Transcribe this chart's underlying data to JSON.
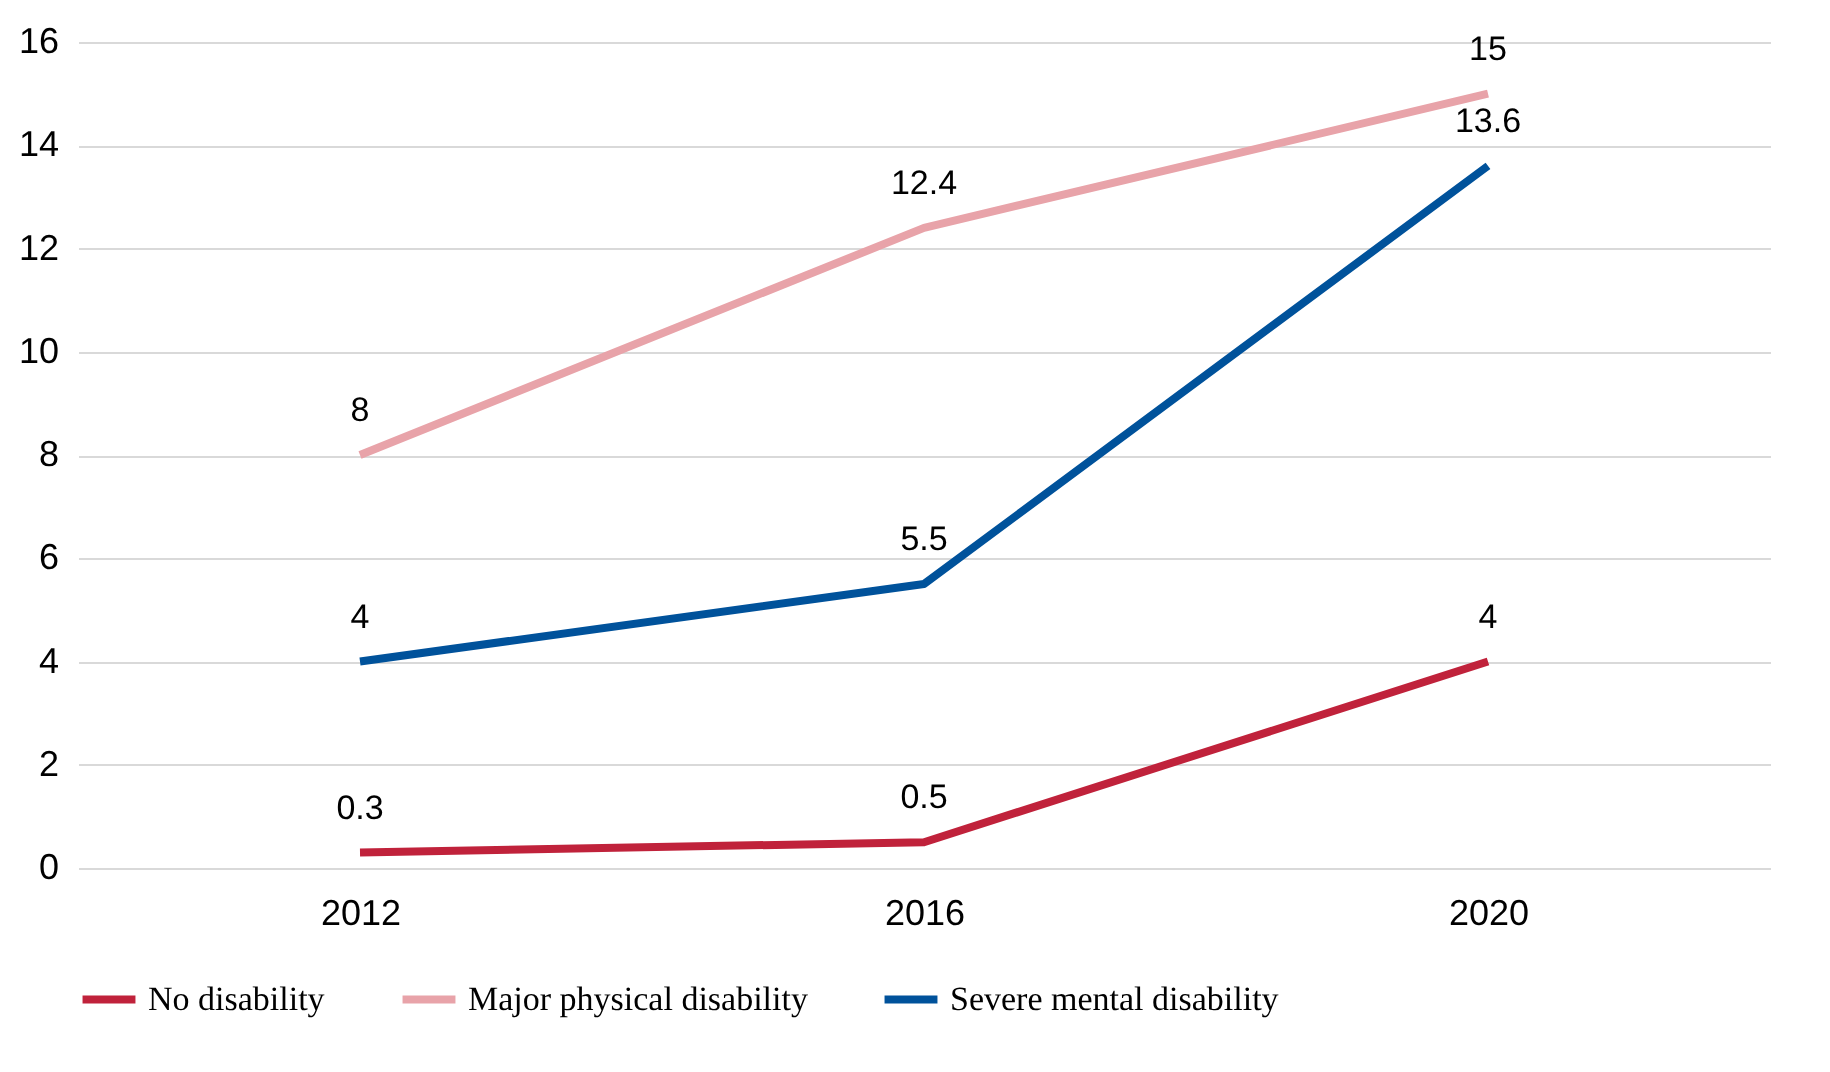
{
  "chart_data": {
    "type": "line",
    "categories": [
      "2012",
      "2016",
      "2020"
    ],
    "series": [
      {
        "name": "No disability",
        "color": "#c0223b",
        "values": [
          0.3,
          0.5,
          4
        ]
      },
      {
        "name": "Major physical disability",
        "color": "#e8a3a9",
        "values": [
          8,
          12.4,
          15
        ]
      },
      {
        "name": "Severe mental disability",
        "color": "#00529b",
        "values": [
          4,
          5.5,
          13.6
        ]
      }
    ],
    "ylim": [
      0,
      16
    ],
    "yticks": [
      0,
      2,
      4,
      6,
      8,
      10,
      12,
      14,
      16
    ],
    "grid": "y",
    "legend": "bottom",
    "data_labels": true,
    "marker": "none",
    "line_style": "solid"
  }
}
